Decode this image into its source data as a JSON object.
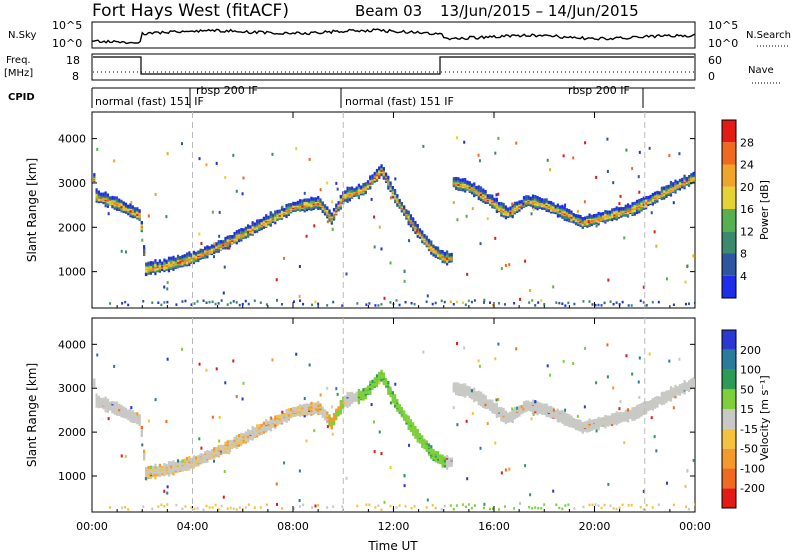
{
  "header": {
    "station": "Fort Hays West (fitACF)",
    "beam": "Beam 03",
    "dates": "13/Jun/2015 – 14/Jun/2015"
  },
  "strip_labels": {
    "nsky": "N.Sky",
    "nsky_ticks": [
      "10^5",
      "10^0"
    ],
    "nsearch": "N.Search",
    "nsearch_ticks": [
      "10^5",
      "10^0"
    ],
    "freq": "Freq.",
    "freq_unit": "[MHz]",
    "freq_ticks": [
      "18",
      "8"
    ],
    "nave": "Nave",
    "nave_ticks": [
      "60",
      "0"
    ],
    "cpid": "CPID"
  },
  "cpid_segments": [
    {
      "label": "normal (fast) 151 IF",
      "start_h": 0,
      "end_h": 2
    },
    {
      "label": "rbsp 200 IF",
      "start_h": 2,
      "end_h": 10
    },
    {
      "label": "normal (fast) 151 IF",
      "start_h": 10,
      "end_h": 14
    },
    {
      "label": "rbsp 200 IF",
      "start_h": 14,
      "end_h": 24
    }
  ],
  "chart_data": [
    {
      "type": "heatmap",
      "panel": "power",
      "ylabel": "Slant Range [km]",
      "xlabel": "Time UT",
      "x_range_hours": [
        0,
        24
      ],
      "ylim": [
        180,
        4600
      ],
      "y_ticks": [
        "1000",
        "2000",
        "3000",
        "4000"
      ],
      "x_ticks": [
        "00:00",
        "04:00",
        "08:00",
        "12:00",
        "16:00",
        "20:00",
        "00:00"
      ],
      "colorbar_label": "Power [dB]",
      "colorbar_ticks": [
        "4",
        "8",
        "12",
        "16",
        "20",
        "24",
        "28"
      ],
      "colorbar_colors": [
        "#1e2ee8",
        "#2d56a0",
        "#3b8a6e",
        "#57b04f",
        "#e3d336",
        "#f0a52a",
        "#ef6a1e",
        "#e41b14"
      ]
    },
    {
      "type": "heatmap",
      "panel": "velocity",
      "ylabel": "Slant Range [km]",
      "xlabel": "Time UT",
      "x_range_hours": [
        0,
        24
      ],
      "ylim": [
        180,
        4600
      ],
      "y_ticks": [
        "1000",
        "2000",
        "3000",
        "4000"
      ],
      "x_ticks": [
        "00:00",
        "04:00",
        "08:00",
        "12:00",
        "16:00",
        "20:00",
        "00:00"
      ],
      "colorbar_label": "Velocity [m s⁻¹]",
      "colorbar_ticks": [
        "200",
        "100",
        "50",
        "15",
        "-15",
        "-50",
        "-100",
        "-200"
      ],
      "colorbar_colors": [
        "#2a37d2",
        "#2a7a9a",
        "#2c9b55",
        "#7ed03a",
        "#c8c8c4",
        "#f4c23c",
        "#f39a2a",
        "#ee6a1e",
        "#e41b14"
      ]
    }
  ],
  "echo_band": [
    {
      "h": 0.1,
      "km": 2700
    },
    {
      "h": 0.6,
      "km": 2600
    },
    {
      "h": 1.2,
      "km": 2450
    },
    {
      "h": 1.9,
      "km": 2250
    },
    {
      "h": 2.1,
      "km": 1050
    },
    {
      "h": 3.0,
      "km": 1150
    },
    {
      "h": 4.0,
      "km": 1300
    },
    {
      "h": 5.0,
      "km": 1550
    },
    {
      "h": 6.0,
      "km": 1850
    },
    {
      "h": 7.0,
      "km": 2150
    },
    {
      "h": 8.0,
      "km": 2450
    },
    {
      "h": 9.0,
      "km": 2550
    },
    {
      "h": 9.5,
      "km": 2200
    },
    {
      "h": 10.0,
      "km": 2700
    },
    {
      "h": 10.8,
      "km": 2850
    },
    {
      "h": 11.5,
      "km": 3300
    },
    {
      "h": 12.0,
      "km": 2700
    },
    {
      "h": 12.8,
      "km": 2000
    },
    {
      "h": 13.5,
      "km": 1500
    },
    {
      "h": 14.0,
      "km": 1300
    },
    {
      "h": 14.3,
      "km": 3000
    },
    {
      "h": 15.0,
      "km": 2900
    },
    {
      "h": 15.8,
      "km": 2600
    },
    {
      "h": 16.5,
      "km": 2300
    },
    {
      "h": 17.3,
      "km": 2600
    },
    {
      "h": 18.0,
      "km": 2500
    },
    {
      "h": 18.8,
      "km": 2300
    },
    {
      "h": 19.5,
      "km": 2100
    },
    {
      "h": 20.5,
      "km": 2250
    },
    {
      "h": 21.5,
      "km": 2400
    },
    {
      "h": 22.5,
      "km": 2700
    },
    {
      "h": 23.3,
      "km": 2950
    },
    {
      "h": 23.9,
      "km": 3100
    }
  ]
}
